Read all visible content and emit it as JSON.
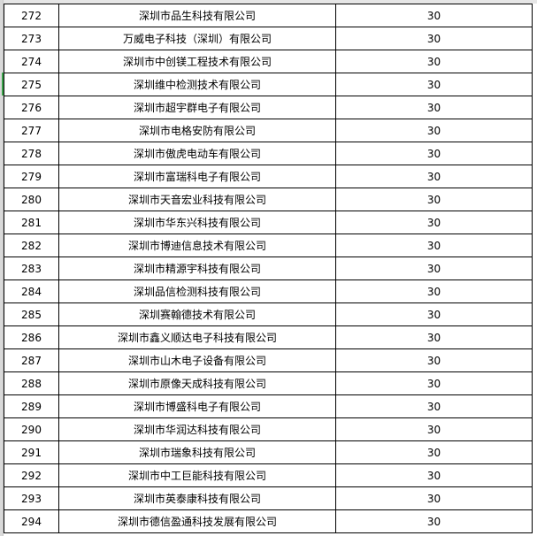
{
  "rows": [
    {
      "no": "272",
      "name": "深圳市品生科技有限公司",
      "value": "30"
    },
    {
      "no": "273",
      "name": "万威电子科技（深圳）有限公司",
      "value": "30"
    },
    {
      "no": "274",
      "name": "深圳市中创镁工程技术有限公司",
      "value": "30"
    },
    {
      "no": "275",
      "name": "深圳维中检测技术有限公司",
      "value": "30"
    },
    {
      "no": "276",
      "name": "深圳市超宇群电子有限公司",
      "value": "30"
    },
    {
      "no": "277",
      "name": "深圳市电格安防有限公司",
      "value": "30"
    },
    {
      "no": "278",
      "name": "深圳市傲虎电动车有限公司",
      "value": "30"
    },
    {
      "no": "279",
      "name": "深圳市富瑞科电子有限公司",
      "value": "30"
    },
    {
      "no": "280",
      "name": "深圳市天音宏业科技有限公司",
      "value": "30"
    },
    {
      "no": "281",
      "name": "深圳市华东兴科技有限公司",
      "value": "30"
    },
    {
      "no": "282",
      "name": "深圳市博迪信息技术有限公司",
      "value": "30"
    },
    {
      "no": "283",
      "name": "深圳市精源宇科技有限公司",
      "value": "30"
    },
    {
      "no": "284",
      "name": "深圳品信检测科技有限公司",
      "value": "30"
    },
    {
      "no": "285",
      "name": "深圳赛翰德技术有限公司",
      "value": "30"
    },
    {
      "no": "286",
      "name": "深圳市鑫义顺达电子科技有限公司",
      "value": "30"
    },
    {
      "no": "287",
      "name": "深圳市山木电子设备有限公司",
      "value": "30"
    },
    {
      "no": "288",
      "name": "深圳市原像天成科技有限公司",
      "value": "30"
    },
    {
      "no": "289",
      "name": "深圳市博盛科电子有限公司",
      "value": "30"
    },
    {
      "no": "290",
      "name": "深圳市华润达科技有限公司",
      "value": "30"
    },
    {
      "no": "291",
      "name": "深圳市瑞象科技有限公司",
      "value": "30"
    },
    {
      "no": "292",
      "name": "深圳市中工巨能科技有限公司",
      "value": "30"
    },
    {
      "no": "293",
      "name": "深圳市英泰康科技有限公司",
      "value": "30"
    },
    {
      "no": "294",
      "name": "深圳市德信盈通科技发展有限公司",
      "value": "30"
    }
  ]
}
